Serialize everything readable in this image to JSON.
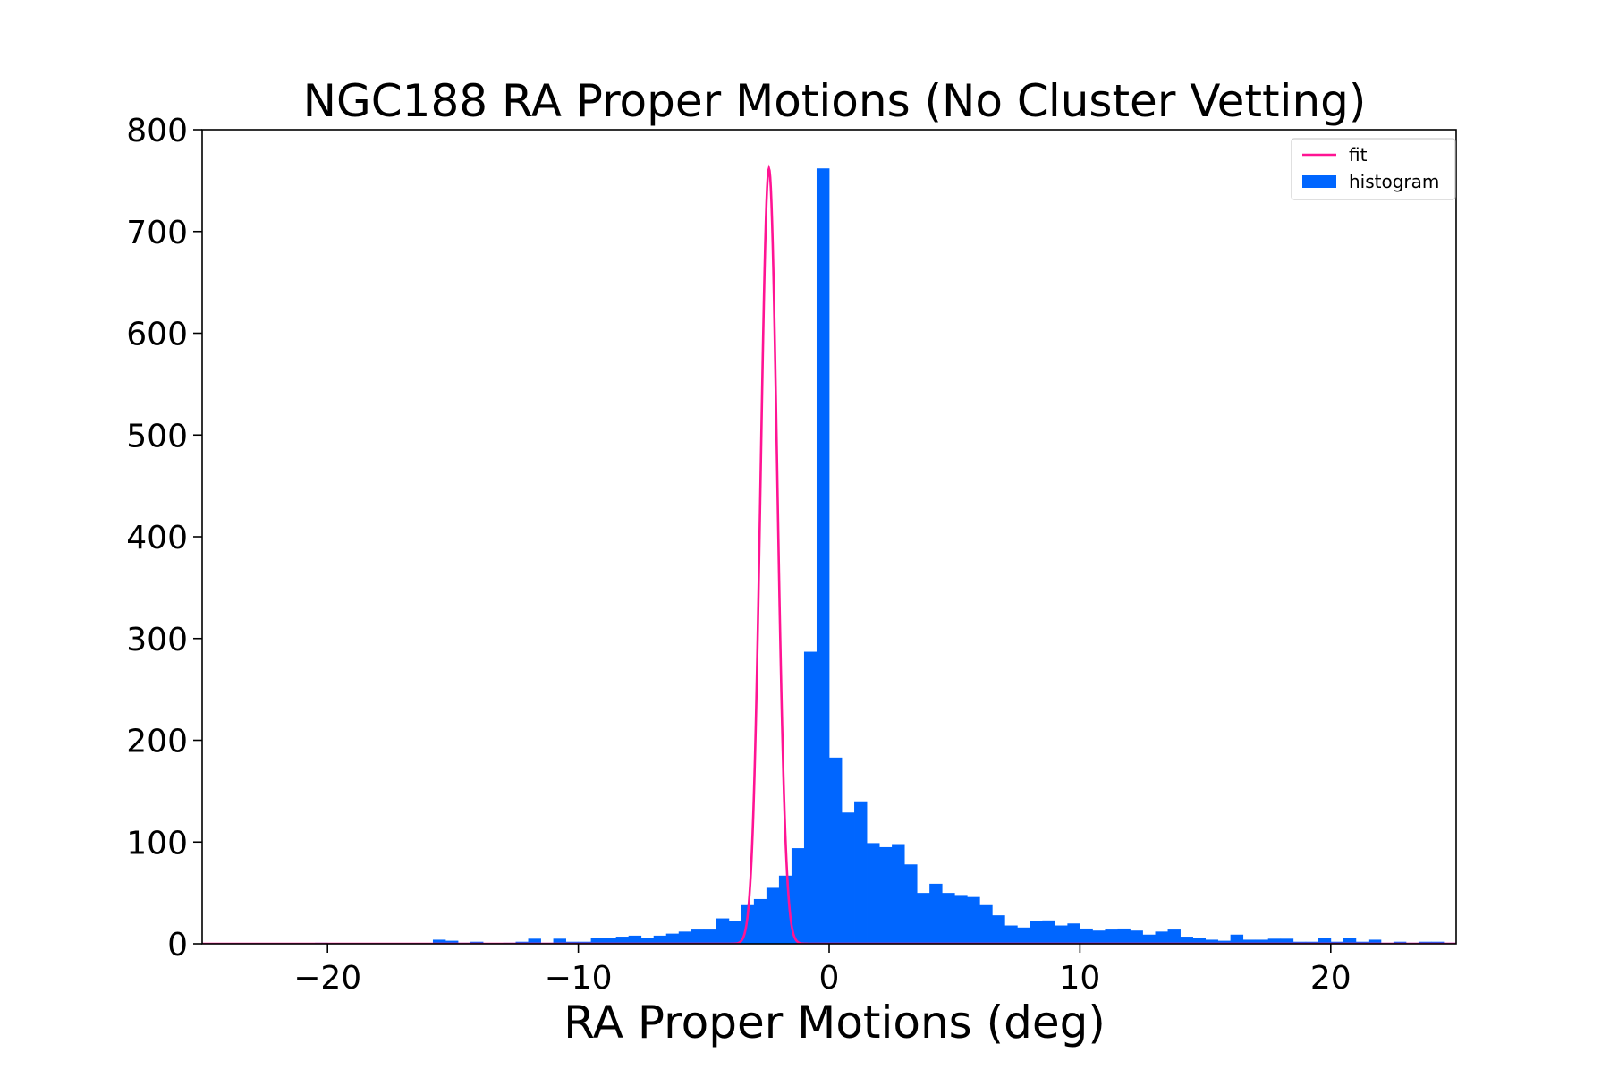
{
  "chart_data": {
    "type": "bar",
    "title": "NGC188 RA Proper Motions (No Cluster Vetting)",
    "xlabel": "RA Proper Motions (deg)",
    "ylabel": "",
    "xlim": [
      -25,
      25
    ],
    "ylim": [
      0,
      800
    ],
    "xticks": [
      -20,
      -10,
      0,
      10,
      20
    ],
    "xtick_labels": [
      "−20",
      "−10",
      "0",
      "10",
      "20"
    ],
    "yticks": [
      0,
      100,
      200,
      300,
      400,
      500,
      600,
      700,
      800
    ],
    "grid": false,
    "legend_position": "top-right",
    "colors": {
      "histogram": "#0066ff",
      "fit": "#ff1493"
    },
    "series": [
      {
        "name": "histogram",
        "type": "bar",
        "bin_width": 0.5,
        "bins": [
          [
            -20.5,
            1
          ],
          [
            -15.8,
            4
          ],
          [
            -15.3,
            3
          ],
          [
            -14.8,
            1
          ],
          [
            -14.3,
            2
          ],
          [
            -13.0,
            1
          ],
          [
            -12.5,
            2
          ],
          [
            -12.0,
            5
          ],
          [
            -11.5,
            1
          ],
          [
            -11.0,
            5
          ],
          [
            -10.5,
            2
          ],
          [
            -10.0,
            2
          ],
          [
            -9.5,
            6
          ],
          [
            -9.0,
            6
          ],
          [
            -8.5,
            7
          ],
          [
            -8.0,
            8
          ],
          [
            -7.5,
            6
          ],
          [
            -7.0,
            8
          ],
          [
            -6.5,
            10
          ],
          [
            -6.0,
            12
          ],
          [
            -5.5,
            14
          ],
          [
            -5.0,
            14
          ],
          [
            -4.5,
            25
          ],
          [
            -4.0,
            22
          ],
          [
            -3.5,
            38
          ],
          [
            -3.0,
            44
          ],
          [
            -2.5,
            55
          ],
          [
            -2.0,
            67
          ],
          [
            -1.5,
            94
          ],
          [
            -1.0,
            287
          ],
          [
            -0.5,
            762
          ],
          [
            0.0,
            183
          ],
          [
            0.5,
            129
          ],
          [
            1.0,
            140
          ],
          [
            1.5,
            99
          ],
          [
            2.0,
            95
          ],
          [
            2.5,
            98
          ],
          [
            3.0,
            78
          ],
          [
            3.5,
            50
          ],
          [
            4.0,
            59
          ],
          [
            4.5,
            50
          ],
          [
            5.0,
            48
          ],
          [
            5.5,
            46
          ],
          [
            6.0,
            38
          ],
          [
            6.5,
            28
          ],
          [
            7.0,
            18
          ],
          [
            7.5,
            16
          ],
          [
            8.0,
            22
          ],
          [
            8.5,
            23
          ],
          [
            9.0,
            18
          ],
          [
            9.5,
            20
          ],
          [
            10.0,
            15
          ],
          [
            10.5,
            13
          ],
          [
            11.0,
            14
          ],
          [
            11.5,
            15
          ],
          [
            12.0,
            13
          ],
          [
            12.5,
            9
          ],
          [
            13.0,
            12
          ],
          [
            13.5,
            14
          ],
          [
            14.0,
            7
          ],
          [
            14.5,
            6
          ],
          [
            15.0,
            4
          ],
          [
            15.5,
            3
          ],
          [
            16.0,
            9
          ],
          [
            16.5,
            4
          ],
          [
            17.0,
            4
          ],
          [
            17.5,
            5
          ],
          [
            18.0,
            5
          ],
          [
            18.5,
            2
          ],
          [
            19.0,
            2
          ],
          [
            19.5,
            6
          ],
          [
            20.0,
            2
          ],
          [
            20.5,
            6
          ],
          [
            21.0,
            2
          ],
          [
            21.5,
            4
          ],
          [
            22.0,
            1
          ],
          [
            22.5,
            2
          ],
          [
            23.0,
            1
          ],
          [
            23.5,
            2
          ],
          [
            24.0,
            2
          ],
          [
            24.5,
            1
          ],
          [
            25.0,
            1
          ],
          [
            25.5,
            1
          ],
          [
            26.0,
            1
          ]
        ]
      },
      {
        "name": "fit",
        "type": "line",
        "model": "gaussian",
        "amplitude": 762,
        "mean": -2.4,
        "sigma": 0.33
      }
    ]
  }
}
